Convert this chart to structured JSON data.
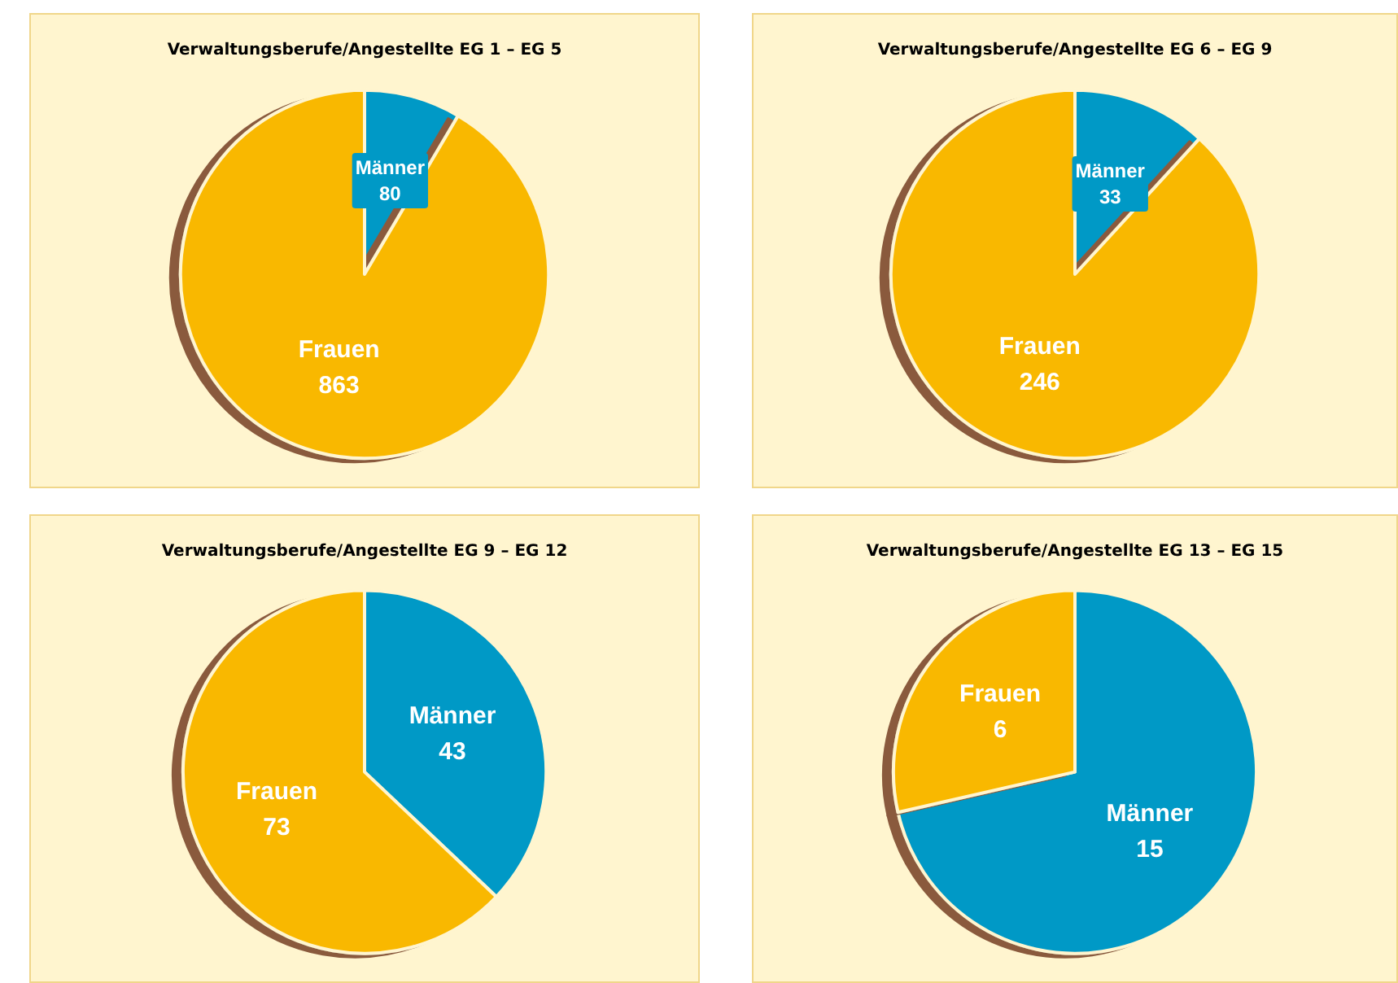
{
  "chart_data": [
    {
      "type": "pie",
      "title": "Verwaltungsberufe/Angestellte EG 1 – EG 5",
      "categories": [
        "Männer",
        "Frauen"
      ],
      "values": [
        80,
        863
      ],
      "colors": [
        "#0099c6",
        "#f9b800"
      ],
      "data_labels": true
    },
    {
      "type": "pie",
      "title": "Verwaltungsberufe/Angestellte EG 6 – EG 9",
      "categories": [
        "Männer",
        "Frauen"
      ],
      "values": [
        33,
        246
      ],
      "colors": [
        "#0099c6",
        "#f9b800"
      ],
      "data_labels": true
    },
    {
      "type": "pie",
      "title": "Verwaltungsberufe/Angestellte EG 9 – EG 12",
      "categories": [
        "Männer",
        "Frauen"
      ],
      "values": [
        43,
        73
      ],
      "colors": [
        "#0099c6",
        "#f9b800"
      ],
      "data_labels": true
    },
    {
      "type": "pie",
      "title": "Verwaltungsberufe/Angestellte EG 13 – EG 15",
      "categories": [
        "Männer",
        "Frauen"
      ],
      "values": [
        15,
        6
      ],
      "colors": [
        "#0099c6",
        "#f9b800"
      ],
      "data_labels": true
    }
  ]
}
